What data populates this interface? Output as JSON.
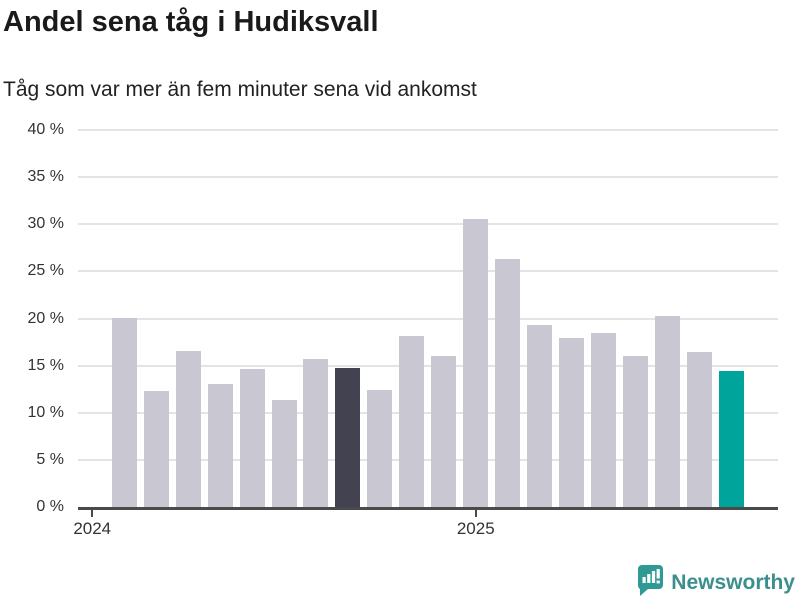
{
  "header": {
    "title": "Andel sena tåg i Hudiksvall",
    "subtitle": "Tåg som var mer än fem minuter sena vid ankomst"
  },
  "chart_data": {
    "type": "bar",
    "title": "Andel sena tåg i Hudiksvall",
    "subtitle": "Tåg som var mer än fem minuter sena vid ankomst",
    "unit": "%",
    "values": [
      20.1,
      12.3,
      16.6,
      13.1,
      14.6,
      11.4,
      15.7,
      14.7,
      12.4,
      18.1,
      16.0,
      30.6,
      26.3,
      19.3,
      17.9,
      18.5,
      16.0,
      20.3,
      16.4,
      14.4
    ],
    "highlighted_dark_bar_index": 7,
    "highlighted_teal_bar_index": 19,
    "ylim": [
      0,
      40
    ],
    "y_tick_step": 5,
    "y_tick_labels": [
      "0 %",
      "5 %",
      "10 %",
      "15 %",
      "20 %",
      "25 %",
      "30 %",
      "35 %",
      "40 %"
    ],
    "x_tick_labels": [
      "2024",
      "2025"
    ],
    "x_tick_bar_positions": [
      -1,
      11
    ],
    "grid": "horizontal",
    "legend": "none",
    "colors": {
      "bar": "#c9c7d1",
      "highlight_dark": "#434251",
      "highlight_teal": "#00a49b",
      "gridline": "#e4e3e6",
      "axis": "#4a4a4a",
      "tick_text": "#333333"
    }
  },
  "footer": {
    "brand": "Newsworthy",
    "brand_text_color": "#3b908e",
    "logo_icon": "bar-chart-speech-bubble-icon",
    "logo_icon_color": "#2f9a94"
  }
}
